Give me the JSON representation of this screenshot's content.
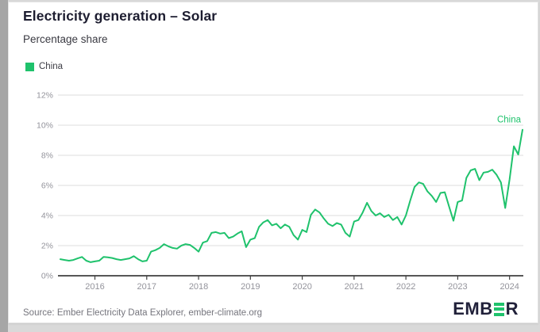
{
  "header": {
    "title": "Electricity generation – Solar",
    "subtitle": "Percentage share"
  },
  "legend": {
    "items": [
      {
        "label": "China",
        "color": "#1fc26c"
      }
    ]
  },
  "chart_data": {
    "type": "line",
    "title": "Electricity generation – Solar",
    "subtitle": "Percentage share",
    "unit": "%",
    "frequency": "monthly",
    "x_start": "2015-05",
    "x_end": "2024-04",
    "year_ticks": [
      2016,
      2017,
      2018,
      2019,
      2020,
      2021,
      2022,
      2023,
      2024
    ],
    "y_ticks": [
      0,
      2,
      4,
      6,
      8,
      10,
      12
    ],
    "ylim": [
      0,
      12
    ],
    "y_tick_suffix": "%",
    "grid": "horizontal",
    "legend_position": "top-left",
    "series": [
      {
        "name": "China",
        "color": "#1fc26c",
        "end_label": "China",
        "values": [
          1.1,
          1.05,
          1.0,
          1.05,
          1.15,
          1.25,
          1.0,
          0.9,
          0.95,
          1.0,
          1.25,
          1.22,
          1.18,
          1.1,
          1.05,
          1.1,
          1.15,
          1.3,
          1.1,
          0.95,
          1.0,
          1.6,
          1.7,
          1.85,
          2.1,
          1.95,
          1.85,
          1.8,
          2.0,
          2.1,
          2.05,
          1.85,
          1.6,
          2.2,
          2.3,
          2.85,
          2.9,
          2.8,
          2.85,
          2.5,
          2.6,
          2.8,
          2.95,
          1.9,
          2.4,
          2.5,
          3.25,
          3.55,
          3.7,
          3.35,
          3.45,
          3.15,
          3.4,
          3.25,
          2.7,
          2.4,
          3.05,
          2.9,
          4.05,
          4.4,
          4.2,
          3.8,
          3.45,
          3.3,
          3.5,
          3.4,
          2.85,
          2.6,
          3.6,
          3.7,
          4.2,
          4.85,
          4.3,
          4.0,
          4.15,
          3.9,
          4.05,
          3.7,
          3.9,
          3.4,
          4.0,
          5.0,
          5.9,
          6.2,
          6.1,
          5.6,
          5.3,
          4.9,
          5.5,
          5.55,
          4.6,
          3.65,
          4.9,
          5.0,
          6.5,
          7.0,
          7.1,
          6.35,
          6.85,
          6.9,
          7.05,
          6.7,
          6.2,
          4.5,
          6.4,
          8.6,
          8.05,
          9.7
        ]
      }
    ],
    "colors": {
      "line": "#1fc26c",
      "gridline": "#dcdcdc",
      "axis": "#3f3f3f",
      "tick_label": "#93939b"
    }
  },
  "footer": {
    "source": "Source: Ember Electricity Data Explorer, ember-climate.org",
    "logo": {
      "text_before": "EMB",
      "text_after": "R"
    }
  }
}
